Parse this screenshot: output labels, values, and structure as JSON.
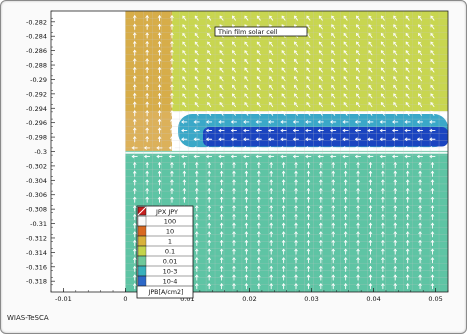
{
  "chart_data": {
    "type": "heatmap",
    "title": "Thin film solar cell",
    "xlabel": "",
    "ylabel": "",
    "xlim": [
      -0.012,
      0.052
    ],
    "ylim": [
      -0.3195,
      -0.2805
    ],
    "x_ticks": [
      -0.01,
      0,
      0.01,
      0.02,
      0.03,
      0.04,
      0.05
    ],
    "x_tick_labels": [
      "-0.01",
      "0",
      "0.01",
      "0.02",
      "0.03",
      "0.04",
      "0.05"
    ],
    "y_ticks": [
      -0.282,
      -0.284,
      -0.286,
      -0.288,
      -0.29,
      -0.292,
      -0.294,
      -0.296,
      -0.298,
      -0.3,
      -0.302,
      -0.304,
      -0.306,
      -0.308,
      -0.31,
      -0.312,
      -0.314,
      -0.316,
      -0.318
    ],
    "y_tick_labels": [
      "-0.282",
      "-0.284",
      "-0.286",
      "-0.288",
      "-0.29",
      "-0.292",
      "-0.294",
      "-0.296",
      "-0.298",
      "-0.3",
      "-0.302",
      "-0.304",
      "-0.306",
      "-0.308",
      "-0.31",
      "-0.312",
      "-0.314",
      "-0.316",
      "-0.318"
    ],
    "grid": true,
    "legend_placement": "bottom-left",
    "legend": {
      "header": "JPX JPY",
      "entries": [
        {
          "label": "100",
          "color": "#f9f9f9"
        },
        {
          "label": "10",
          "color": "#d86820"
        },
        {
          "label": "1",
          "color": "#d8b23a"
        },
        {
          "label": "0.1",
          "color": "#c4d44a"
        },
        {
          "label": "0.01",
          "color": "#6ec89a"
        },
        {
          "label": "10-3",
          "color": "#38b0bc"
        },
        {
          "label": "10-4",
          "color": "#2c68c8"
        }
      ],
      "unit": "JPB[A/cm2]"
    },
    "regions": [
      {
        "label": "10-4",
        "color": "#1a44c0",
        "x": [
          0.0125,
          0.052
        ],
        "y": [
          -0.2993,
          -0.2966
        ]
      },
      {
        "label": "10-3",
        "color": "#3aa8c8",
        "x": [
          0.0085,
          0.052
        ],
        "y": [
          -0.2994,
          -0.2948
        ]
      },
      {
        "label": "0.01",
        "color": "#5ec4a4",
        "x": [
          0.0,
          0.052
        ],
        "y": [
          -0.3195,
          -0.3003
        ]
      },
      {
        "label": "0.1",
        "color": "#c8d650",
        "x": [
          0.0,
          0.052
        ],
        "y": [
          -0.2944,
          -0.2805
        ]
      },
      {
        "label": "1",
        "color": "#d8a848",
        "x": [
          0.0,
          0.0075
        ],
        "y": [
          -0.3,
          -0.2805
        ]
      }
    ],
    "junction_y": -0.3,
    "empty_region_x": [
      -0.012,
      0.0
    ]
  },
  "footer": {
    "credit": "WIAS-TeSCA"
  },
  "colors": {
    "arrow": "#ffffff",
    "grid": "#c8c8c8",
    "frame": "#8a8a8a"
  }
}
